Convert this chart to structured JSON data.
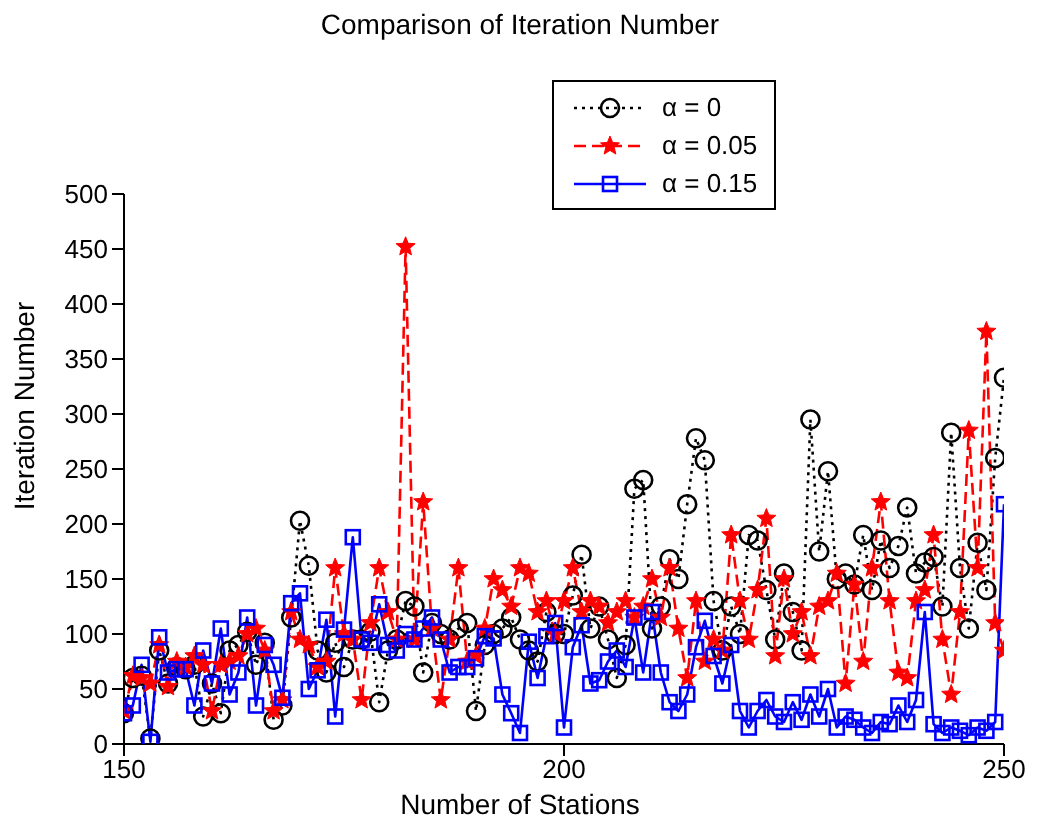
{
  "chart_data": {
    "type": "line",
    "title": "Comparison of Iteration Number",
    "xlabel": "Number of Stations",
    "ylabel": "Iteration Number",
    "x": [
      150,
      151,
      152,
      153,
      154,
      155,
      156,
      157,
      158,
      159,
      160,
      161,
      162,
      163,
      164,
      165,
      166,
      167,
      168,
      169,
      170,
      171,
      172,
      173,
      174,
      175,
      176,
      177,
      178,
      179,
      180,
      181,
      182,
      183,
      184,
      185,
      186,
      187,
      188,
      189,
      190,
      191,
      192,
      193,
      194,
      195,
      196,
      197,
      198,
      199,
      200,
      201,
      202,
      203,
      204,
      205,
      206,
      207,
      208,
      209,
      210,
      211,
      212,
      213,
      214,
      215,
      216,
      217,
      218,
      219,
      220,
      221,
      222,
      223,
      224,
      225,
      226,
      227,
      228,
      229,
      230,
      231,
      232,
      233,
      234,
      235,
      236,
      237,
      238,
      239,
      240,
      241,
      242,
      243,
      244,
      245,
      246,
      247,
      248,
      249,
      250
    ],
    "series": [
      {
        "name": "α = 0",
        "color": "#000000",
        "marker": "circle",
        "line_style": "dotted",
        "values": [
          28,
          60,
          62,
          5,
          85,
          55,
          70,
          68,
          72,
          25,
          55,
          28,
          85,
          90,
          102,
          72,
          92,
          22,
          35,
          115,
          203,
          162,
          85,
          65,
          92,
          70,
          95,
          95,
          102,
          38,
          85,
          95,
          130,
          125,
          65,
          110,
          100,
          95,
          105,
          110,
          30,
          90,
          100,
          105,
          115,
          95,
          85,
          75,
          120,
          100,
          100,
          135,
          172,
          105,
          125,
          95,
          60,
          90,
          232,
          240,
          105,
          125,
          168,
          150,
          218,
          278,
          258,
          130,
          85,
          125,
          100,
          190,
          185,
          140,
          95,
          155,
          120,
          85,
          295,
          175,
          248,
          150,
          155,
          145,
          190,
          140,
          185,
          160,
          180,
          215,
          155,
          165,
          170,
          125,
          283,
          160,
          105,
          183,
          140,
          260,
          333
        ]
      },
      {
        "name": "α = 0.05",
        "color": "#ff0000",
        "marker": "star",
        "line_style": "dashed",
        "values": [
          30,
          62,
          60,
          55,
          90,
          52,
          75,
          70,
          80,
          72,
          30,
          72,
          75,
          80,
          100,
          105,
          85,
          30,
          40,
          120,
          95,
          90,
          70,
          75,
          160,
          100,
          95,
          40,
          110,
          160,
          120,
          95,
          452,
          95,
          220,
          105,
          40,
          95,
          160,
          75,
          80,
          105,
          150,
          140,
          125,
          160,
          155,
          120,
          130,
          100,
          130,
          160,
          120,
          130,
          125,
          110,
          120,
          130,
          115,
          125,
          150,
          115,
          160,
          105,
          60,
          130,
          75,
          95,
          85,
          190,
          130,
          95,
          140,
          205,
          80,
          150,
          100,
          120,
          80,
          125,
          130,
          155,
          55,
          145,
          75,
          160,
          220,
          130,
          65,
          60,
          130,
          140,
          190,
          95,
          45,
          120,
          285,
          160,
          375,
          110,
          85
        ]
      },
      {
        "name": "α = 0.15",
        "color": "#0000ff",
        "marker": "square",
        "line_style": "solid",
        "values": [
          28,
          35,
          72,
          2,
          97,
          65,
          68,
          68,
          35,
          85,
          55,
          105,
          45,
          65,
          115,
          35,
          90,
          72,
          42,
          128,
          137,
          50,
          67,
          113,
          25,
          104,
          188,
          95,
          92,
          127,
          90,
          85,
          100,
          95,
          105,
          115,
          95,
          65,
          70,
          70,
          78,
          98,
          96,
          45,
          28,
          10,
          93,
          60,
          98,
          110,
          15,
          88,
          108,
          55,
          58,
          75,
          85,
          70,
          115,
          65,
          120,
          65,
          38,
          30,
          45,
          88,
          112,
          80,
          55,
          90,
          30,
          15,
          30,
          40,
          25,
          20,
          38,
          22,
          45,
          25,
          50,
          15,
          25,
          22,
          15,
          10,
          20,
          18,
          35,
          20,
          40,
          120,
          18,
          10,
          15,
          12,
          8,
          15,
          12,
          20,
          218
        ]
      }
    ],
    "xlim": [
      150,
      250
    ],
    "xticks": [
      150,
      200,
      250
    ],
    "ylim": [
      0,
      500
    ],
    "yticks": [
      0,
      50,
      100,
      150,
      200,
      250,
      300,
      350,
      400,
      450,
      500
    ],
    "legend": "top"
  }
}
